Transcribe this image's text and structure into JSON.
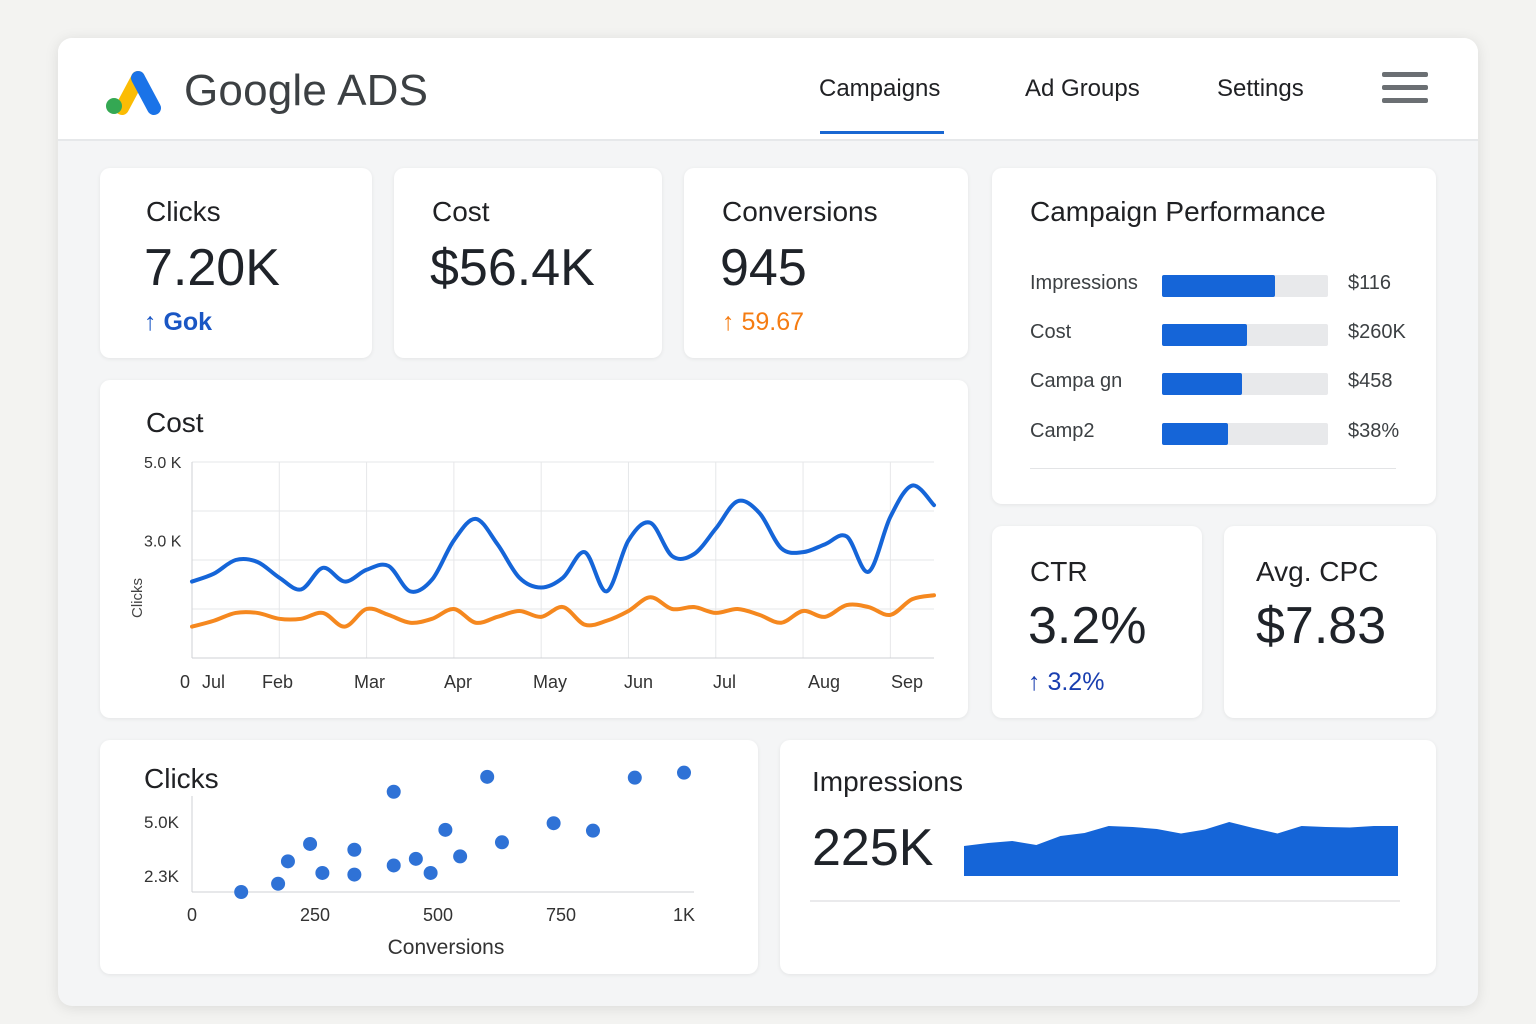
{
  "header": {
    "brand": "Google ADS",
    "nav": [
      {
        "label": "Campaigns",
        "active": true
      },
      {
        "label": "Ad Groups",
        "active": false
      },
      {
        "label": "Settings",
        "active": false
      }
    ],
    "menu_icon": "hamburger-menu-icon"
  },
  "kpis": {
    "clicks": {
      "title": "Clicks",
      "value": "7.20K",
      "delta": "Gok",
      "delta_icon": "arrow-up-icon"
    },
    "cost": {
      "title": "Cost",
      "value": "$56.4K"
    },
    "conversions": {
      "title": "Conversions",
      "value": "945",
      "delta": "59.67",
      "delta_icon": "arrow-up-icon"
    },
    "ctr": {
      "title": "CTR",
      "value": "3.2%",
      "delta": "3.2%",
      "delta_icon": "arrow-up-icon"
    },
    "avg_cpc": {
      "title": "Avg. CPC",
      "value": "$7.83"
    }
  },
  "campaign_performance": {
    "title": "Campaign Performance",
    "rows": [
      {
        "label": "Impressions",
        "value": "$116",
        "fill": 0.68
      },
      {
        "label": "Cost",
        "value": "$260K",
        "fill": 0.51
      },
      {
        "label": "Campa gn",
        "value": "$458",
        "fill": 0.48
      },
      {
        "label": "Camp2",
        "value": "$38%",
        "fill": 0.4
      }
    ]
  },
  "colors": {
    "accent": "#1967d2",
    "blue_series": "#1565d8",
    "orange_series": "#f5881f"
  },
  "chart_data": [
    {
      "type": "line",
      "title": "Cost",
      "ylabel": "Clicks",
      "y_tick_labels": [
        "5.0 K",
        "3.0 K"
      ],
      "yticks": [
        5000,
        3000
      ],
      "ylim": [
        0,
        5000
      ],
      "x_tick_labels": [
        "0",
        "Jul",
        "Feb",
        "Mar",
        "Apr",
        "May",
        "Jun",
        "Jul",
        "Aug",
        "Sep"
      ],
      "x": [
        0,
        0.25,
        0.5,
        0.75,
        1,
        1.25,
        1.5,
        1.75,
        2,
        2.25,
        2.5,
        2.75,
        3,
        3.25,
        3.5,
        3.75,
        4,
        4.25,
        4.5,
        4.75,
        5,
        5.25,
        5.5,
        5.75,
        6,
        6.25,
        6.5,
        6.75,
        7,
        7.25,
        7.5,
        7.75,
        8,
        8.25,
        8.5
      ],
      "series": [
        {
          "color": "#1565d8",
          "values": [
            1950,
            2150,
            2500,
            2450,
            2050,
            1750,
            2300,
            1950,
            2250,
            2350,
            1700,
            2000,
            3000,
            3550,
            2900,
            2050,
            1800,
            2050,
            2700,
            1700,
            3000,
            3450,
            2600,
            2650,
            3300,
            4000,
            3700,
            2800,
            2700,
            2900,
            3100,
            2200,
            3600,
            4400,
            3900
          ]
        },
        {
          "color": "#f5881f",
          "values": [
            800,
            950,
            1150,
            1150,
            1000,
            1000,
            1150,
            800,
            1250,
            1100,
            900,
            1000,
            1250,
            900,
            1050,
            1200,
            1050,
            1300,
            850,
            950,
            1200,
            1550,
            1250,
            1300,
            1150,
            1250,
            1100,
            900,
            1200,
            1050,
            1350,
            1300,
            1100,
            1500,
            1600
          ]
        }
      ],
      "grid": true
    },
    {
      "type": "scatter",
      "title": "Clicks",
      "xlabel": "Conversions",
      "x_tick_labels": [
        "0",
        "250",
        "500",
        "750",
        "1K"
      ],
      "xticks": [
        0,
        250,
        500,
        750,
        1000
      ],
      "y_tick_labels": [
        "5.0K",
        "2.3K"
      ],
      "yticks": [
        5000,
        2300
      ],
      "xlim": [
        0,
        1000
      ],
      "ylim": [
        0,
        7000
      ],
      "points": [
        {
          "x": 100,
          "y": 0
        },
        {
          "x": 175,
          "y": 500
        },
        {
          "x": 195,
          "y": 1850
        },
        {
          "x": 240,
          "y": 2900
        },
        {
          "x": 265,
          "y": 1150
        },
        {
          "x": 330,
          "y": 2550
        },
        {
          "x": 330,
          "y": 1050
        },
        {
          "x": 410,
          "y": 6050
        },
        {
          "x": 410,
          "y": 1600
        },
        {
          "x": 455,
          "y": 2000
        },
        {
          "x": 485,
          "y": 1150
        },
        {
          "x": 515,
          "y": 3750
        },
        {
          "x": 545,
          "y": 2150
        },
        {
          "x": 600,
          "y": 6950
        },
        {
          "x": 630,
          "y": 3000
        },
        {
          "x": 735,
          "y": 4150
        },
        {
          "x": 815,
          "y": 3700
        },
        {
          "x": 900,
          "y": 6900
        },
        {
          "x": 1000,
          "y": 7200
        }
      ]
    },
    {
      "type": "area",
      "title": "Impressions",
      "headline_value": "225K",
      "color": "#1565d8",
      "values": [
        0.6,
        0.66,
        0.7,
        0.62,
        0.8,
        0.86,
        1.0,
        0.98,
        0.94,
        0.85,
        0.93,
        1.08,
        0.96,
        0.85,
        1.0,
        0.98,
        0.97,
        1.0,
        1.0
      ],
      "ylim": [
        0,
        1.2
      ]
    }
  ]
}
